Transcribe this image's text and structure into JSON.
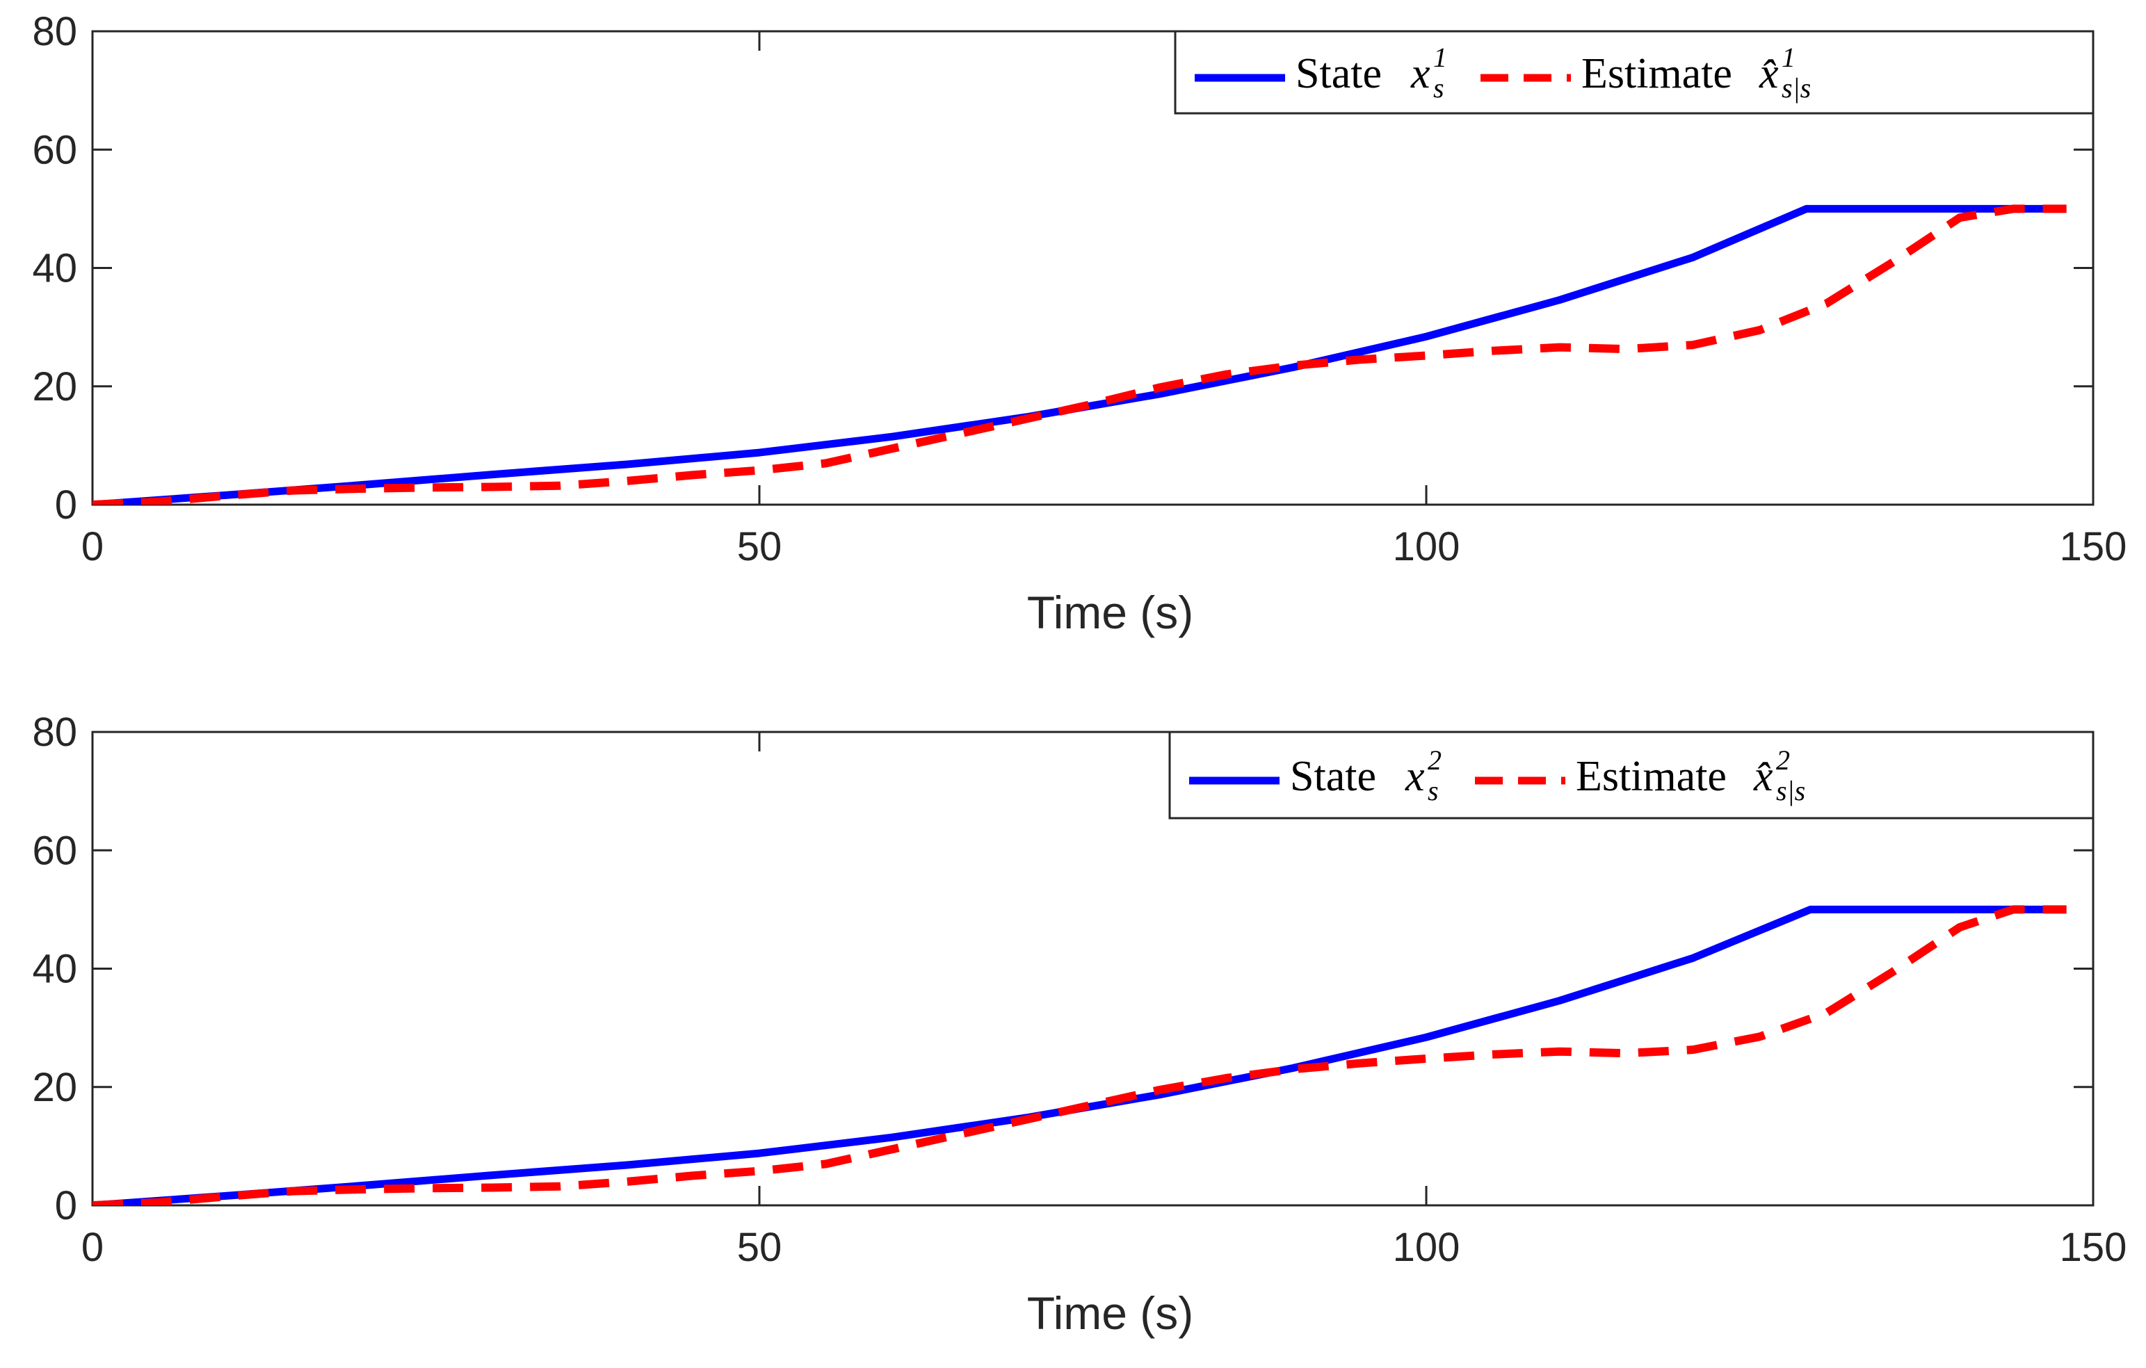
{
  "chart_data": [
    {
      "type": "line",
      "title": "",
      "xlabel": "Time (s)",
      "ylabel": "",
      "xlim": [
        0,
        150
      ],
      "ylim": [
        0,
        80
      ],
      "xticks": [
        "0",
        "50",
        "100",
        "150"
      ],
      "yticks": [
        "0",
        "20",
        "40",
        "60",
        "80"
      ],
      "grid": false,
      "legend_position": "top-right",
      "series": [
        {
          "name": "State x_s^1",
          "legend_prefix": "State",
          "legend_symbol": "x",
          "legend_sup": "1",
          "legend_sub": "s",
          "color": "#0000ff",
          "style": "solid",
          "x": [
            0,
            10,
            20,
            30,
            40,
            50,
            60,
            70,
            80,
            90,
            100,
            110,
            120,
            128.5,
            140,
            148
          ],
          "y": [
            0,
            1.6,
            3.3,
            5.1,
            6.8,
            8.8,
            11.5,
            14.8,
            18.7,
            23.2,
            28.4,
            34.6,
            41.8,
            50,
            50,
            50
          ]
        },
        {
          "name": "Estimate x̂_{s|s}^1",
          "legend_prefix": "Estimate",
          "legend_symbol": "x̂",
          "legend_sup": "1",
          "legend_sub": "s|s",
          "color": "#ff0000",
          "style": "dashed",
          "x": [
            0,
            5,
            10,
            15,
            20,
            25,
            30,
            35,
            40,
            45,
            50,
            55,
            60,
            65,
            70,
            75,
            80,
            85,
            90,
            95,
            100,
            105,
            110,
            115,
            120,
            125,
            130,
            135,
            140,
            144,
            148
          ],
          "y": [
            0,
            0.5,
            1.5,
            2.4,
            2.7,
            2.9,
            3.0,
            3.2,
            4.0,
            5.0,
            5.8,
            7.0,
            9.5,
            12.0,
            14.5,
            17.0,
            19.8,
            22.0,
            23.5,
            24.5,
            25.2,
            26.0,
            26.6,
            26.3,
            27.0,
            29.5,
            34.0,
            41.0,
            48.5,
            50,
            50
          ]
        }
      ]
    },
    {
      "type": "line",
      "title": "",
      "xlabel": "Time (s)",
      "ylabel": "",
      "xlim": [
        0,
        150
      ],
      "ylim": [
        0,
        80
      ],
      "xticks": [
        "0",
        "50",
        "100",
        "150"
      ],
      "yticks": [
        "0",
        "20",
        "40",
        "60",
        "80"
      ],
      "grid": false,
      "legend_position": "top-right",
      "series": [
        {
          "name": "State x_s^2",
          "legend_prefix": "State",
          "legend_symbol": "x",
          "legend_sup": "2",
          "legend_sub": "s",
          "color": "#0000ff",
          "style": "solid",
          "x": [
            0,
            10,
            20,
            30,
            40,
            50,
            60,
            70,
            80,
            90,
            100,
            110,
            120,
            128.8,
            140,
            148
          ],
          "y": [
            0,
            1.6,
            3.3,
            5.1,
            6.8,
            8.8,
            11.5,
            14.8,
            18.7,
            23.2,
            28.4,
            34.6,
            41.8,
            50,
            50,
            50
          ]
        },
        {
          "name": "Estimate x̂_{s|s}^2",
          "legend_prefix": "Estimate",
          "legend_symbol": "x̂",
          "legend_sup": "2",
          "legend_sub": "s|s",
          "color": "#ff0000",
          "style": "dashed",
          "x": [
            0,
            5,
            10,
            15,
            20,
            25,
            30,
            35,
            40,
            45,
            50,
            55,
            60,
            65,
            70,
            75,
            80,
            85,
            90,
            95,
            100,
            105,
            110,
            115,
            120,
            125,
            130,
            135,
            140,
            144,
            148
          ],
          "y": [
            0,
            0.5,
            1.5,
            2.4,
            2.7,
            2.9,
            3.0,
            3.2,
            4.0,
            5.0,
            5.8,
            7.0,
            9.5,
            12.0,
            14.5,
            17.0,
            19.5,
            21.5,
            23.0,
            24.0,
            24.8,
            25.5,
            26.0,
            25.7,
            26.3,
            28.5,
            32.5,
            39.5,
            47.0,
            50,
            50
          ]
        }
      ]
    }
  ]
}
